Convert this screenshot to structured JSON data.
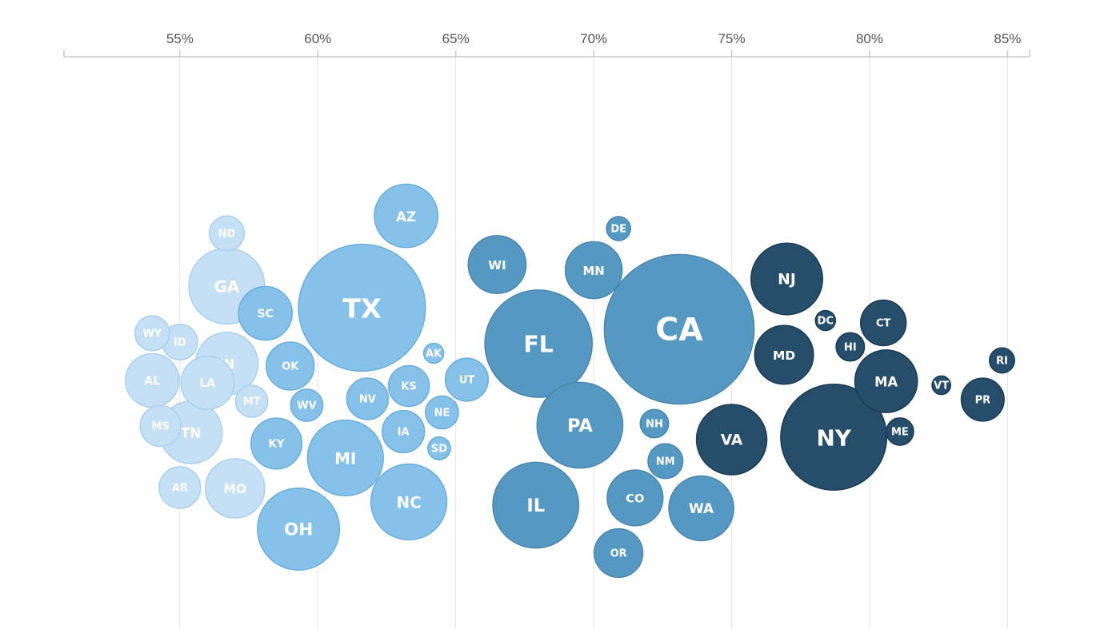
{
  "chart_data": {
    "type": "scatter",
    "subtype": "beeswarm-bubble",
    "title": "",
    "xlabel": "",
    "ylabel": "",
    "xlim": [
      50.8,
      85.8
    ],
    "xticks": [
      55,
      60,
      65,
      70,
      75,
      80,
      85
    ],
    "xtick_labels": [
      "55%",
      "60%",
      "65%",
      "70%",
      "75%",
      "80%",
      "85%"
    ],
    "grid": true,
    "colors": [
      "#c5e0f4",
      "#85c1e8",
      "#5599c2",
      "#264e6a"
    ],
    "stroke_colors": [
      "#a9d0ee",
      "#6aaedc",
      "#4a86ad",
      "#1c3b52"
    ],
    "bubbles": [
      {
        "label": "WY",
        "x": 54.0,
        "size": 2.1,
        "tier": 0
      },
      {
        "label": "ND",
        "x": 56.7,
        "size": 2.1,
        "tier": 0
      },
      {
        "label": "GA",
        "x": 56.7,
        "size": 10.0,
        "tier": 0
      },
      {
        "label": "ID",
        "x": 55.0,
        "size": 2.2,
        "tier": 0
      },
      {
        "label": "AL",
        "x": 54.0,
        "size": 5.0,
        "tier": 0
      },
      {
        "label": "LA",
        "x": 56.0,
        "size": 4.9,
        "tier": 0
      },
      {
        "label": "IN",
        "x": 56.7,
        "size": 6.8,
        "tier": 0
      },
      {
        "label": "MT",
        "x": 57.6,
        "size": 1.8,
        "tier": 0
      },
      {
        "label": "MS",
        "x": 54.3,
        "size": 2.9,
        "tier": 0
      },
      {
        "label": "TN",
        "x": 55.4,
        "size": 6.8,
        "tier": 0
      },
      {
        "label": "AR",
        "x": 55.0,
        "size": 3.0,
        "tier": 0
      },
      {
        "label": "MO",
        "x": 57.0,
        "size": 6.1,
        "tier": 0
      },
      {
        "label": "SC",
        "x": 58.1,
        "size": 5.0,
        "tier": 1
      },
      {
        "label": "OK",
        "x": 59.0,
        "size": 4.0,
        "tier": 1
      },
      {
        "label": "WV",
        "x": 59.6,
        "size": 1.8,
        "tier": 1
      },
      {
        "label": "KY",
        "x": 58.5,
        "size": 4.5,
        "tier": 1
      },
      {
        "label": "TX",
        "x": 61.6,
        "size": 28.0,
        "tier": 1
      },
      {
        "label": "AZ",
        "x": 63.2,
        "size": 7.0,
        "tier": 1
      },
      {
        "label": "MI",
        "x": 61.0,
        "size": 10.0,
        "tier": 1
      },
      {
        "label": "OH",
        "x": 59.3,
        "size": 11.7,
        "tier": 1
      },
      {
        "label": "NV",
        "x": 61.8,
        "size": 3.0,
        "tier": 1
      },
      {
        "label": "KS",
        "x": 63.3,
        "size": 2.9,
        "tier": 1
      },
      {
        "label": "AK",
        "x": 64.2,
        "size": 0.7,
        "tier": 1
      },
      {
        "label": "IA",
        "x": 63.1,
        "size": 3.1,
        "tier": 1
      },
      {
        "label": "NE",
        "x": 64.5,
        "size": 1.9,
        "tier": 1
      },
      {
        "label": "SD",
        "x": 64.4,
        "size": 0.9,
        "tier": 1
      },
      {
        "label": "UT",
        "x": 65.4,
        "size": 3.2,
        "tier": 1
      },
      {
        "label": "NC",
        "x": 63.3,
        "size": 10.0,
        "tier": 1
      },
      {
        "label": "WI",
        "x": 66.5,
        "size": 5.8,
        "tier": 2
      },
      {
        "label": "MN",
        "x": 70.0,
        "size": 5.6,
        "tier": 2
      },
      {
        "label": "DE",
        "x": 70.9,
        "size": 1.0,
        "tier": 2
      },
      {
        "label": "FL",
        "x": 68.0,
        "size": 20.0,
        "tier": 2
      },
      {
        "label": "CA",
        "x": 73.1,
        "size": 39.0,
        "tier": 2
      },
      {
        "label": "PA",
        "x": 69.5,
        "size": 12.8,
        "tier": 2
      },
      {
        "label": "NH",
        "x": 72.2,
        "size": 1.4,
        "tier": 2
      },
      {
        "label": "NM",
        "x": 72.6,
        "size": 2.1,
        "tier": 2
      },
      {
        "label": "IL",
        "x": 67.9,
        "size": 12.8,
        "tier": 2
      },
      {
        "label": "CO",
        "x": 71.5,
        "size": 5.4,
        "tier": 2
      },
      {
        "label": "WA",
        "x": 73.9,
        "size": 7.3,
        "tier": 2
      },
      {
        "label": "OR",
        "x": 70.9,
        "size": 4.1,
        "tier": 2
      },
      {
        "label": "NJ",
        "x": 77.0,
        "size": 8.9,
        "tier": 3
      },
      {
        "label": "DC",
        "x": 78.4,
        "size": 0.7,
        "tier": 3
      },
      {
        "label": "MD",
        "x": 76.9,
        "size": 6.0,
        "tier": 3
      },
      {
        "label": "HI",
        "x": 79.3,
        "size": 1.4,
        "tier": 3
      },
      {
        "label": "CT",
        "x": 80.5,
        "size": 3.6,
        "tier": 3
      },
      {
        "label": "MA",
        "x": 80.6,
        "size": 6.8,
        "tier": 3
      },
      {
        "label": "VT",
        "x": 82.6,
        "size": 0.6,
        "tier": 3
      },
      {
        "label": "ME",
        "x": 81.1,
        "size": 1.3,
        "tier": 3
      },
      {
        "label": "RI",
        "x": 84.8,
        "size": 1.1,
        "tier": 3
      },
      {
        "label": "PR",
        "x": 84.1,
        "size": 3.2,
        "tier": 3
      },
      {
        "label": "VA",
        "x": 75.0,
        "size": 8.6,
        "tier": 3
      },
      {
        "label": "NY",
        "x": 78.7,
        "size": 19.5,
        "tier": 3
      }
    ]
  }
}
